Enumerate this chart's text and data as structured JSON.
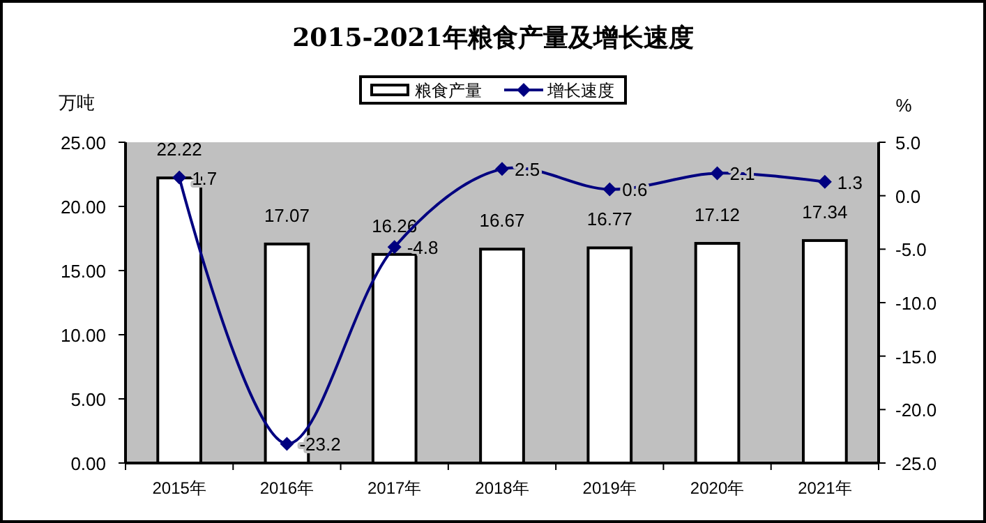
{
  "chart_data": {
    "type": "bar",
    "title": "2015-2021年粮食产量及增长速度",
    "ylabel": "万吨",
    "y2label": "%",
    "categories": [
      "2015年",
      "2016年",
      "2017年",
      "2018年",
      "2019年",
      "2020年",
      "2021年"
    ],
    "series": [
      {
        "name": "粮食产量",
        "color": "#ffffff",
        "values": [
          22.22,
          17.07,
          16.26,
          16.67,
          16.77,
          17.12,
          17.34
        ]
      },
      {
        "name": "增长速度",
        "type": "line",
        "axis": "y2",
        "color": "#000080",
        "values": [
          1.7,
          -23.2,
          -4.8,
          2.5,
          0.6,
          2.1,
          1.3
        ]
      }
    ],
    "ylim": [
      0,
      25
    ],
    "yticks": [
      {
        "value": 0,
        "label": "0.00"
      },
      {
        "value": 5,
        "label": "5.00"
      },
      {
        "value": 10,
        "label": "10.00"
      },
      {
        "value": 15,
        "label": "15.00"
      },
      {
        "value": 20,
        "label": "20.00"
      },
      {
        "value": 25,
        "label": "25.00"
      }
    ],
    "y2lim": [
      -25,
      5
    ],
    "y2ticks": [
      {
        "value": -25,
        "label": "-25.0"
      },
      {
        "value": -20,
        "label": "-20.0"
      },
      {
        "value": -15,
        "label": "-15.0"
      },
      {
        "value": -10,
        "label": "-10.0"
      },
      {
        "value": -5,
        "label": "-5.0"
      },
      {
        "value": 0,
        "label": "0.0"
      },
      {
        "value": 5,
        "label": "5.0"
      }
    ],
    "data_labels": true,
    "legend": "top",
    "marker": "diamond",
    "grid": false
  }
}
